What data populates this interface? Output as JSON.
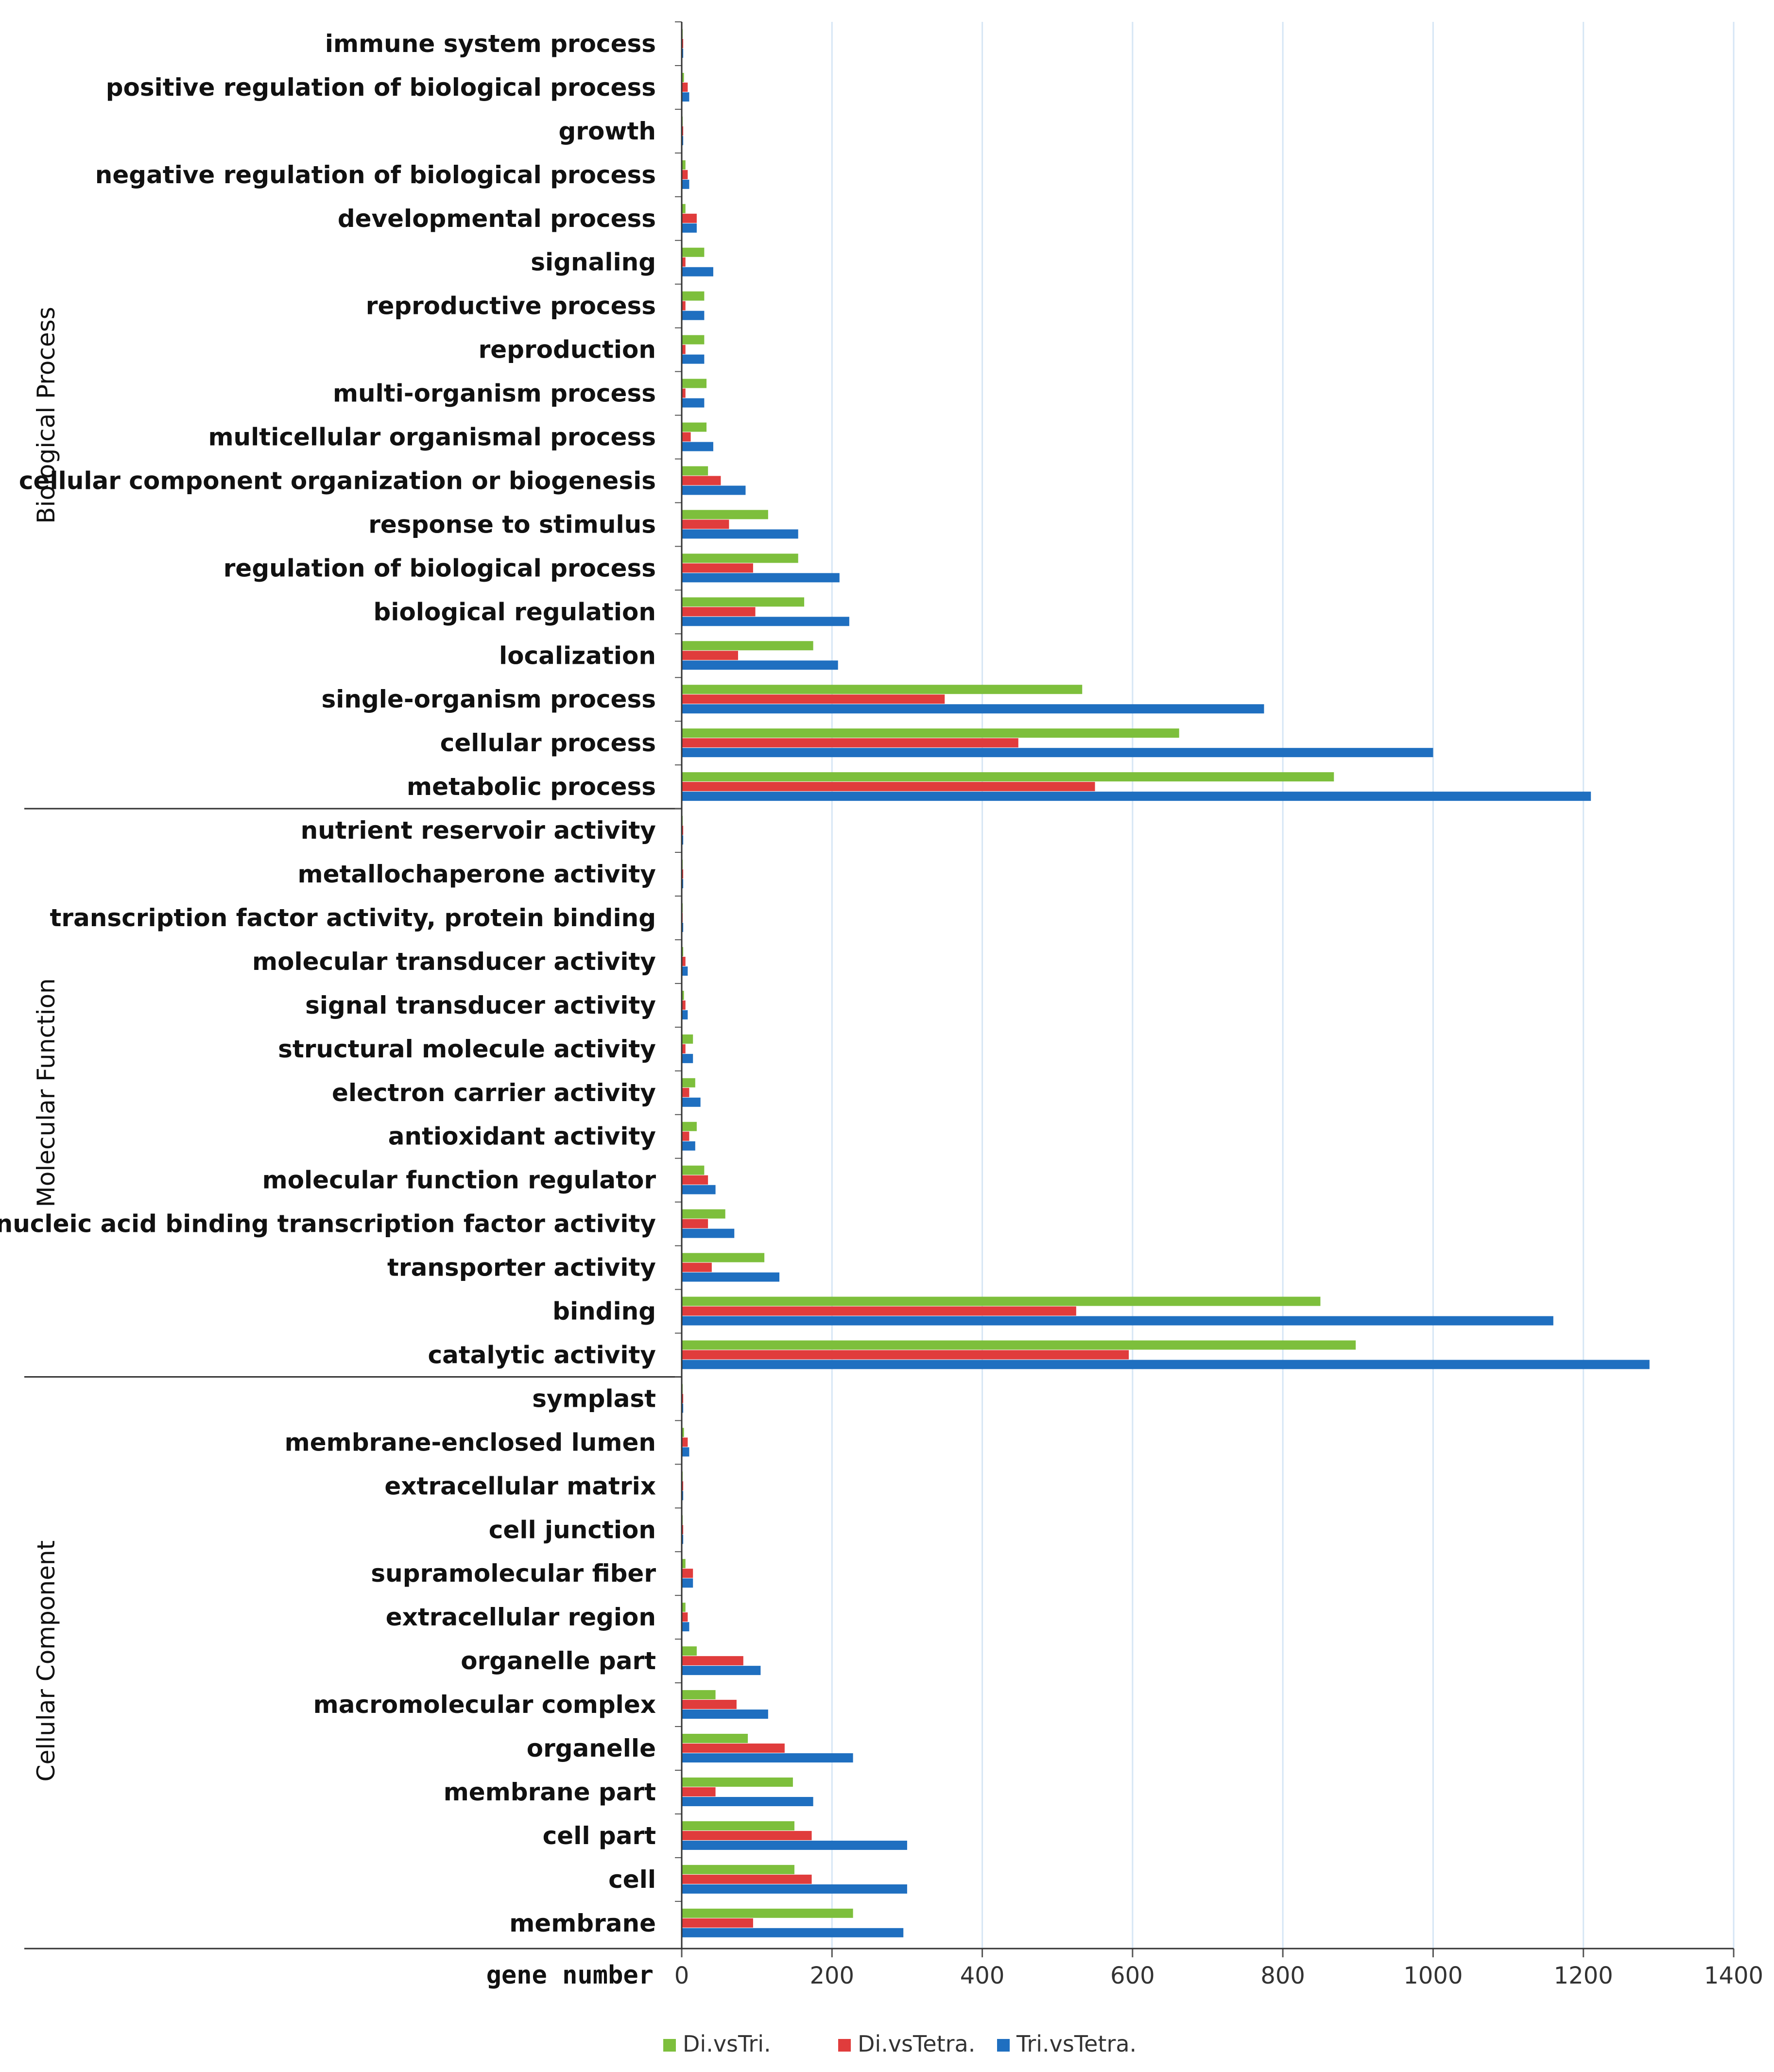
{
  "chart_data": {
    "type": "bar",
    "orientation": "horizontal",
    "title": "",
    "xlabel": "gene number",
    "ylabel": "",
    "xlim": [
      0,
      1400
    ],
    "xticks": [
      "0",
      "200",
      "400",
      "600",
      "800",
      "1000",
      "1200",
      "1400"
    ],
    "grid": "vertical",
    "legend_position": "bottom",
    "series_names": [
      "Di.vsTri.",
      "Di.vsTetra.",
      "Tri.vsTetra."
    ],
    "colors": [
      "#7dbf3c",
      "#e03c3c",
      "#1f6fc0"
    ],
    "groups": [
      {
        "name": "Biological Process",
        "categories": [
          "immune system process",
          "positive regulation of biological process",
          "growth",
          "negative regulation of biological process",
          "developmental process",
          "signaling",
          "reproductive process",
          "reproduction",
          "multi-organism process",
          "multicellular organismal process",
          "cellular component organization or biogenesis",
          "response to stimulus",
          "regulation of biological process",
          "biological regulation",
          "localization",
          "single-organism process",
          "cellular process",
          "metabolic process"
        ],
        "series": [
          {
            "name": "Di.vsTri.",
            "values": [
              1,
              3,
              1,
              5,
              5,
              30,
              30,
              30,
              33,
              33,
              35,
              115,
              155,
              163,
              175,
              533,
              662,
              868
            ]
          },
          {
            "name": "Di.vsTetra.",
            "values": [
              2,
              8,
              2,
              8,
              20,
              5,
              5,
              5,
              5,
              12,
              52,
              63,
              95,
              98,
              75,
              350,
              448,
              550
            ]
          },
          {
            "name": "Tri.vsTetra.",
            "values": [
              2,
              10,
              2,
              10,
              20,
              42,
              30,
              30,
              30,
              42,
              85,
              155,
              210,
              223,
              208,
              775,
              1000,
              1210
            ]
          }
        ]
      },
      {
        "name": "Molecular Function",
        "categories": [
          "nutrient reservoir activity",
          "metallochaperone activity",
          "transcription factor activity, protein binding",
          "molecular transducer activity",
          "signal transducer activity",
          "structural molecule activity",
          "electron carrier activity",
          "antioxidant activity",
          "molecular function regulator",
          "nucleic acid binding transcription factor activity",
          "transporter activity",
          "binding",
          "catalytic activity"
        ],
        "series": [
          {
            "name": "Di.vsTri.",
            "values": [
              1,
              1,
              1,
              2,
              3,
              15,
              18,
              20,
              30,
              58,
              110,
              850,
              897
            ]
          },
          {
            "name": "Di.vsTetra.",
            "values": [
              2,
              2,
              1,
              5,
              5,
              5,
              10,
              10,
              35,
              35,
              40,
              525,
              595
            ]
          },
          {
            "name": "Tri.vsTetra.",
            "values": [
              2,
              2,
              2,
              8,
              8,
              15,
              25,
              18,
              45,
              70,
              130,
              1160,
              1288
            ]
          }
        ]
      },
      {
        "name": "Cellular Component",
        "categories": [
          "symplast",
          "membrane-enclosed lumen",
          "extracellular matrix",
          "cell junction",
          "supramolecular fiber",
          "extracellular region",
          "organelle part",
          "macromolecular complex",
          "organelle",
          "membrane part",
          "cell part",
          "cell",
          "membrane"
        ],
        "series": [
          {
            "name": "Di.vsTri.",
            "values": [
              1,
              3,
              1,
              1,
              5,
              5,
              20,
              45,
              88,
              148,
              150,
              150,
              228
            ]
          },
          {
            "name": "Di.vsTetra.",
            "values": [
              2,
              8,
              2,
              2,
              15,
              8,
              82,
              73,
              137,
              45,
              173,
              173,
              95
            ]
          },
          {
            "name": "Tri.vsTetra.",
            "values": [
              2,
              10,
              2,
              2,
              15,
              10,
              105,
              115,
              228,
              175,
              300,
              300,
              295
            ]
          }
        ]
      }
    ]
  }
}
